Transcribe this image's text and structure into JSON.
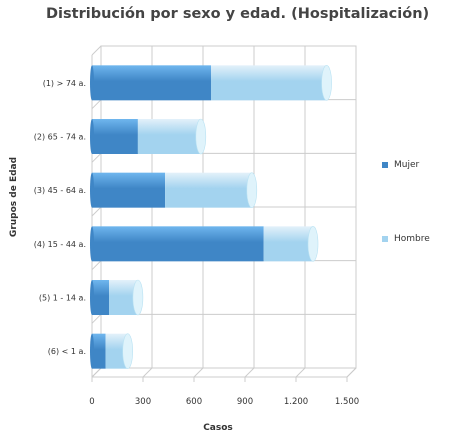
{
  "colors": {
    "mujer": "#3f86c6",
    "mujer_light": "#6fb6ee",
    "hombre": "#a3d3ef",
    "hombre_light": "#e3f1fa",
    "grid": "#cccccc",
    "axis_text": "#333333"
  },
  "chart_data": {
    "type": "bar",
    "orientation": "horizontal",
    "stacked": true,
    "title": "Distribución por sexo y edad. (Hospitalización)",
    "xlabel": "Casos",
    "ylabel": "Grupos de Edad",
    "categories": [
      "(1) > 74 a.",
      "(2) 65 - 74 a.",
      "(3) 45 - 64 a.",
      "(4) 15 - 44 a.",
      "(5) 1 - 14 a.",
      "(6) < 1 a."
    ],
    "series": [
      {
        "name": "Mujer",
        "values": [
          700,
          270,
          430,
          1010,
          100,
          80
        ],
        "color": "#3f86c6"
      },
      {
        "name": "Hombre",
        "values": [
          680,
          370,
          510,
          290,
          170,
          130
        ],
        "color": "#a3d3ef"
      }
    ],
    "xlim": [
      0,
      1500
    ],
    "xticks": [
      "0",
      "300",
      "600",
      "900",
      "1.200",
      "1.500"
    ],
    "xtick_values": [
      0,
      300,
      600,
      900,
      1200,
      1500
    ],
    "grid": true,
    "legend_position": "right"
  }
}
